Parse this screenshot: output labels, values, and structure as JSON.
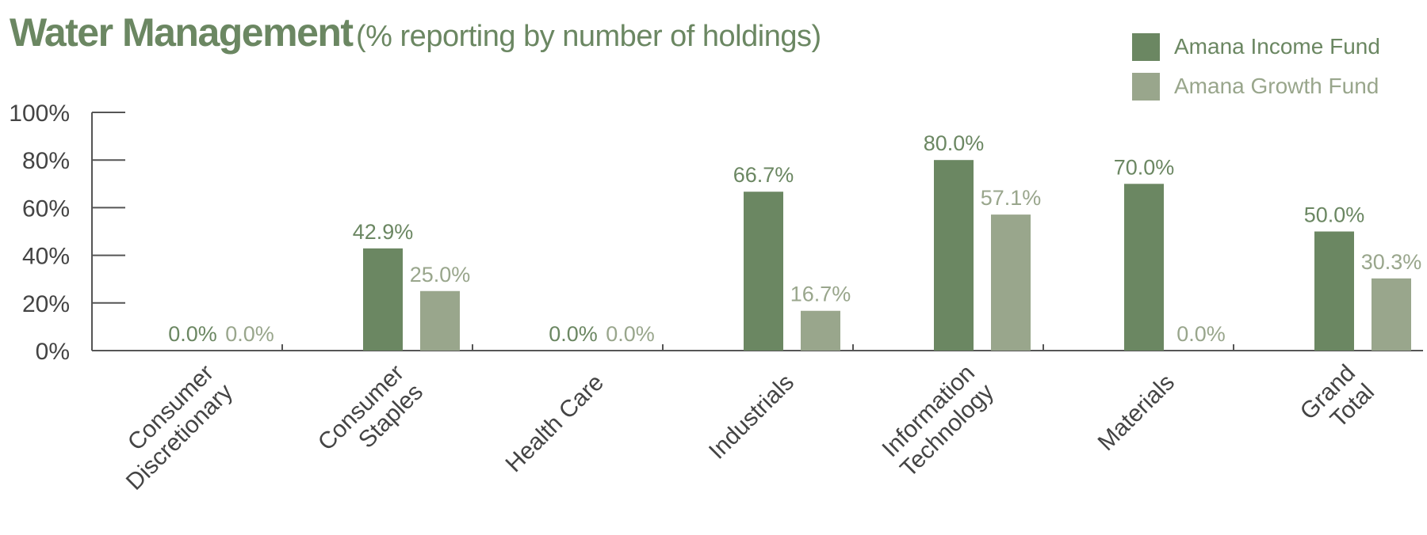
{
  "title": {
    "main": "Water Management",
    "sub": "(% reporting by number of holdings)"
  },
  "colors": {
    "income": "#6b8762",
    "growth": "#99a68c",
    "axis": "#555555",
    "text": "#444444"
  },
  "chart_data": {
    "type": "bar",
    "title": "Water Management (% reporting by number of holdings)",
    "categories": [
      [
        "Consumer",
        "Discretionary"
      ],
      [
        "Consumer",
        "Staples"
      ],
      [
        "Health Care"
      ],
      [
        "Industrials"
      ],
      [
        "Information",
        "Technology"
      ],
      [
        "Materials"
      ],
      [
        "Grand",
        "Total"
      ]
    ],
    "series": [
      {
        "name": "Amana Income Fund",
        "values": [
          0.0,
          42.9,
          0.0,
          66.7,
          80.0,
          70.0,
          50.0
        ],
        "labels": [
          "0.0%",
          "42.9%",
          "0.0%",
          "66.7%",
          "80.0%",
          "70.0%",
          "50.0%"
        ]
      },
      {
        "name": "Amana Growth Fund",
        "values": [
          0.0,
          25.0,
          0.0,
          16.7,
          57.1,
          0.0,
          30.3
        ],
        "labels": [
          "0.0%",
          "25.0%",
          "0.0%",
          "16.7%",
          "57.1%",
          "0.0%",
          "30.3%"
        ]
      }
    ],
    "ylim": [
      0,
      100
    ],
    "yticks": [
      "0%",
      "20%",
      "40%",
      "60%",
      "80%",
      "100%"
    ],
    "ytick_values": [
      0,
      20,
      40,
      60,
      80,
      100
    ],
    "legend": "top-right",
    "grid": false
  }
}
